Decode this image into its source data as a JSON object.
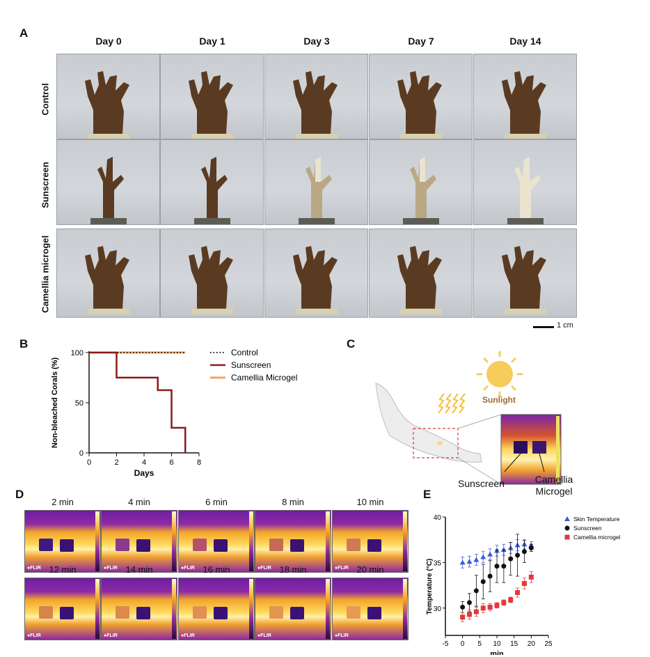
{
  "panelA": {
    "letter": "A",
    "columns": [
      "Day 0",
      "Day 1",
      "Day 3",
      "Day 7",
      "Day 14"
    ],
    "rows": [
      "Control",
      "Sunscreen",
      "Camellia microgel"
    ],
    "scalebar": "1 cm",
    "colors": {
      "healthy": "#5a3b22",
      "bleached": "#eae4cf",
      "partial": "#b9a886"
    }
  },
  "panelB": {
    "letter": "B",
    "chart_data": {
      "type": "line",
      "ylabel": "Non-bleached Corals (%)",
      "xlabel": "Days",
      "xlim": [
        0,
        8
      ],
      "ylim": [
        0,
        100
      ],
      "xticks": [
        "0",
        "2",
        "4",
        "6",
        "8"
      ],
      "yticks": [
        "0",
        "50",
        "100"
      ],
      "legend_position": "right",
      "series": [
        {
          "name": "Control",
          "style": "dotted",
          "color": "#111111",
          "x": [
            0,
            7
          ],
          "y": [
            100,
            100
          ]
        },
        {
          "name": "Sunscreen",
          "style": "step",
          "color": "#8b1a1a",
          "x": [
            0,
            2,
            2,
            5,
            5,
            6,
            6,
            7,
            7
          ],
          "y": [
            100,
            100,
            75,
            75,
            62.5,
            62.5,
            25,
            25,
            0
          ]
        },
        {
          "name": "Camellia Microgel",
          "style": "solid",
          "color": "#f4a460",
          "x": [
            0,
            7
          ],
          "y": [
            100,
            100
          ]
        }
      ]
    }
  },
  "panelC": {
    "letter": "C",
    "sunlight": "Sunlight",
    "sunscreen": "Sunscreen",
    "microgel_line1": "Camellia",
    "microgel_line2": "Microgel"
  },
  "panelD": {
    "letter": "D",
    "flir": "FLIR",
    "times": [
      "2 min",
      "4 min",
      "6 min",
      "8 min",
      "10 min",
      "12 min",
      "14 min",
      "16 min",
      "18 min",
      "20 min"
    ]
  },
  "panelE": {
    "letter": "E",
    "chart_data": {
      "type": "scatter",
      "ylabel": "Temperature (°C)",
      "xlabel": "min",
      "xlim": [
        -5,
        25
      ],
      "ylim": [
        27,
        40
      ],
      "xticks": [
        "-5",
        "0",
        "5",
        "10",
        "15",
        "20",
        "25"
      ],
      "yticks": [
        "30",
        "35",
        "40"
      ],
      "legend_position": "top-right",
      "series": [
        {
          "name": "Skin Temperature",
          "marker": "triangle",
          "color": "#3a5bd9",
          "x": [
            0,
            2,
            4,
            6,
            8,
            10,
            12,
            14,
            16,
            18,
            20
          ],
          "y": [
            35.0,
            35.1,
            35.3,
            35.6,
            35.9,
            36.3,
            36.4,
            36.6,
            36.9,
            37.0,
            36.9
          ],
          "err": [
            0.6,
            0.6,
            0.6,
            0.6,
            0.6,
            0.6,
            0.6,
            0.6,
            0.6,
            0.5,
            0.4
          ]
        },
        {
          "name": "Sunscreen",
          "marker": "circle",
          "color": "#111111",
          "x": [
            0,
            2,
            4,
            6,
            8,
            10,
            12,
            14,
            16,
            18,
            20
          ],
          "y": [
            30.1,
            30.6,
            31.9,
            32.9,
            33.5,
            34.6,
            34.6,
            35.4,
            35.8,
            36.2,
            36.6
          ],
          "err": [
            0.6,
            1.0,
            1.7,
            1.9,
            1.7,
            1.8,
            1.8,
            1.8,
            2.3,
            1.2,
            0.4
          ]
        },
        {
          "name": "Camellia microgel",
          "marker": "square",
          "color": "#e03a3a",
          "x": [
            0,
            2,
            4,
            6,
            8,
            10,
            12,
            14,
            16,
            18,
            20
          ],
          "y": [
            29.0,
            29.3,
            29.6,
            30.0,
            30.1,
            30.3,
            30.6,
            30.9,
            31.7,
            32.7,
            33.4
          ],
          "err": [
            0.5,
            0.5,
            0.5,
            0.5,
            0.4,
            0.3,
            0.3,
            0.3,
            0.5,
            0.6,
            0.6
          ]
        }
      ]
    }
  }
}
